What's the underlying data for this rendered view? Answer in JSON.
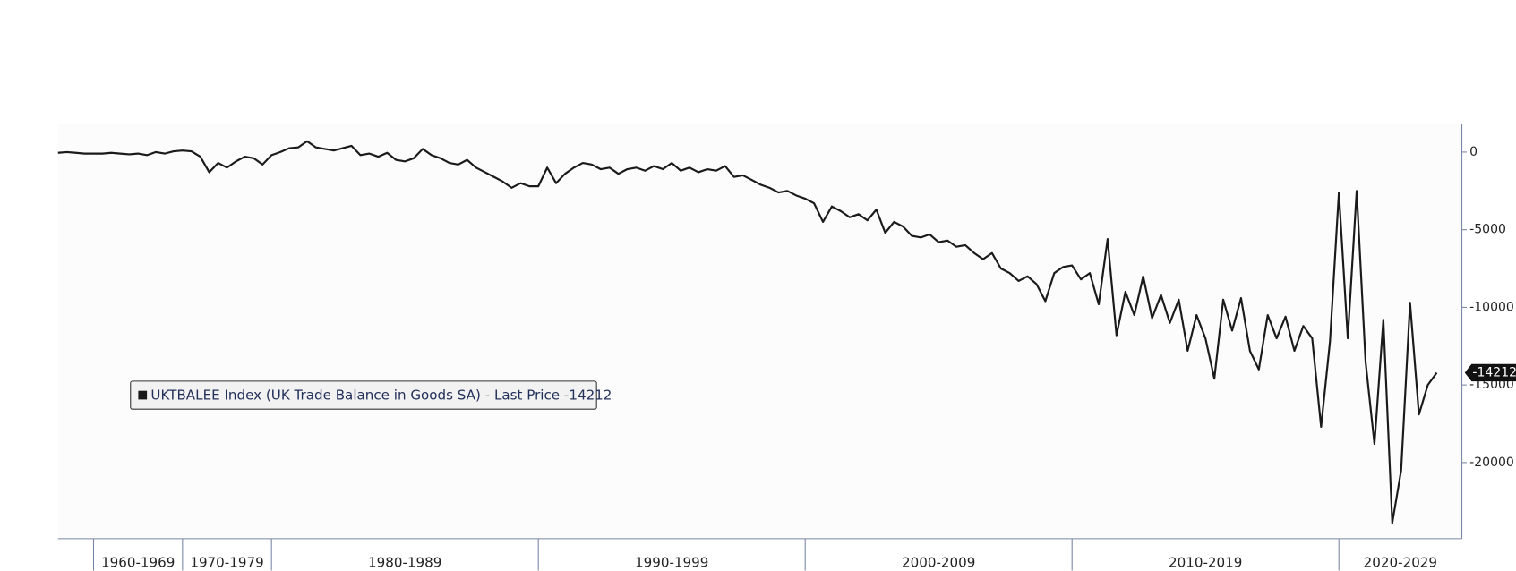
{
  "chart_data": {
    "type": "line",
    "categories": [
      null,
      "1960-1969",
      "1970-1979",
      "1980-1989",
      "1990-1999",
      "2000-2009",
      "2010-2019",
      "2020-2029"
    ],
    "series": [
      {
        "name": "UKTBALEE Index (UK Trade Balance in Goods SA) - Last Price -14212",
        "color": "#1a1a1a",
        "values": [
          [
            -50,
            0,
            -50,
            -100
          ],
          [
            -100,
            -100,
            -50,
            -100,
            -150,
            -100,
            -200,
            0,
            -100,
            50
          ],
          [
            100,
            50,
            -300,
            -1300,
            -700,
            -1000,
            -600,
            -300,
            -400,
            -800
          ],
          [
            -200,
            0,
            250,
            300,
            700,
            300,
            200,
            100,
            250,
            400,
            -200,
            -100,
            -300,
            -50,
            -500,
            -600,
            -400,
            200,
            -200,
            -400,
            -700,
            -800,
            -500,
            -1000,
            -1300,
            -1600,
            -1900,
            -2300,
            -2000,
            -2200
          ],
          [
            -2200,
            -1000,
            -2000,
            -1400,
            -1000,
            -700,
            -800,
            -1100,
            -1000,
            -1400,
            -1100,
            -1000,
            -1200,
            -900,
            -1100,
            -700,
            -1200,
            -1000,
            -1300,
            -1100,
            -1200,
            -900,
            -1600,
            -1500,
            -1800,
            -2100,
            -2300,
            -2600,
            -2500,
            -2800
          ],
          [
            -3000,
            -3300,
            -4500,
            -3500,
            -3800,
            -4200,
            -4000,
            -4400,
            -3700,
            -5200,
            -4500,
            -4800,
            -5400,
            -5500,
            -5300,
            -5800,
            -5700,
            -6100,
            -6000,
            -6500,
            -6900,
            -6500,
            -7500,
            -7800,
            -8300,
            -8000,
            -8500,
            -9600,
            -7800,
            -7400
          ],
          [
            -7300,
            -8200,
            -7800,
            -9800,
            -5600,
            -11800,
            -9000,
            -10500,
            -8000,
            -10700,
            -9200,
            -11000,
            -9500,
            -12800,
            -10500,
            -12000,
            -14600,
            -9500,
            -11500,
            -9400,
            -12800,
            -14000,
            -10500,
            -12000,
            -10600,
            -12800,
            -11200,
            -12000,
            -17700,
            -12200
          ],
          [
            -2600,
            -12000,
            -2500,
            -13500,
            -18800,
            -10800,
            -23900,
            -20500,
            -9700,
            -16900,
            -15000,
            -14212
          ]
        ]
      }
    ],
    "ylim": [
      -24900,
      1800
    ],
    "yticks": [
      0,
      -5000,
      -10000,
      -15000,
      -20000
    ],
    "y_axis_side": "right",
    "legend": "left"
  }
}
